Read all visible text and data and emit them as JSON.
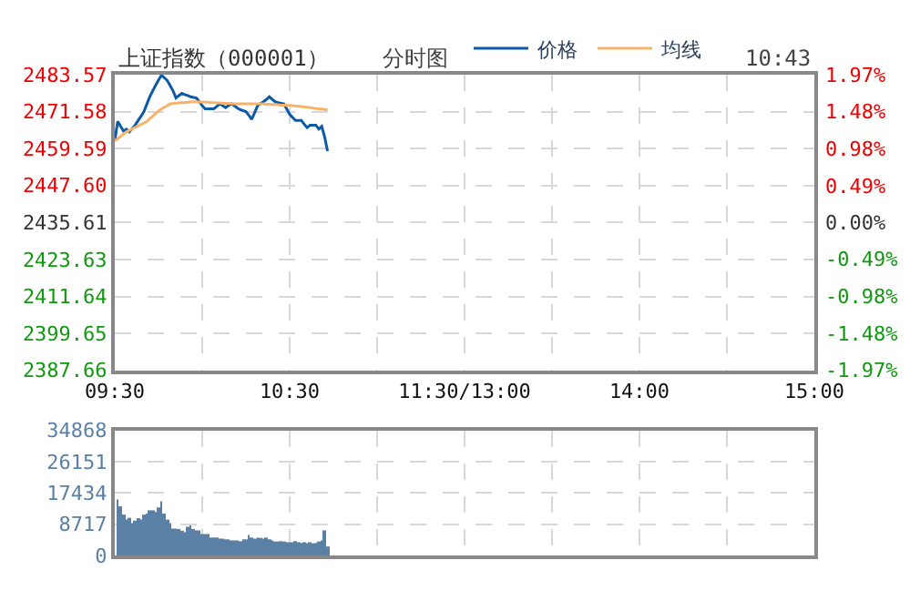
{
  "chart_data": [
    {
      "type": "line",
      "title": "上证指数（000001）",
      "annotations": [
        "分时图",
        "10:43"
      ],
      "legend": "top",
      "grid": true,
      "marker": "none",
      "line_style": "solid",
      "categories": [
        "09:30",
        null,
        null,
        null,
        null,
        null,
        null,
        null,
        null,
        null,
        null,
        null,
        null,
        null,
        null,
        null,
        null,
        null,
        null,
        null,
        null,
        null,
        null,
        null,
        null,
        null,
        null,
        null,
        null,
        null,
        null,
        null,
        null,
        null,
        null,
        null,
        null,
        null,
        null,
        null,
        null,
        null,
        null,
        null,
        null,
        null,
        null,
        null,
        null,
        null,
        null,
        null,
        null,
        null,
        null,
        null,
        null,
        null,
        null,
        null,
        "10:30",
        null,
        null,
        null,
        null,
        null,
        null,
        null,
        null,
        null,
        null,
        null,
        null,
        null,
        null,
        null,
        null,
        null,
        null,
        null,
        null,
        null,
        null,
        null,
        null,
        null,
        null,
        null,
        null,
        null,
        null,
        null,
        null,
        null,
        null,
        null,
        null,
        null,
        null,
        null,
        null,
        null,
        null,
        null,
        null,
        null,
        null,
        null,
        null,
        null,
        null,
        null,
        null,
        null,
        null,
        null,
        null,
        null,
        null,
        null,
        "11:30/13:00",
        null,
        null,
        null,
        null,
        null,
        null,
        null,
        null,
        null,
        null,
        null,
        null,
        null,
        null,
        null,
        null,
        null,
        null,
        null,
        null,
        null,
        null,
        null,
        null,
        null,
        null,
        null,
        null,
        null,
        null,
        null,
        null,
        null,
        null,
        null,
        null,
        null,
        null,
        null,
        null,
        null,
        null,
        null,
        null,
        null,
        null,
        null,
        null,
        null,
        null,
        null,
        null,
        null,
        null,
        null,
        null,
        null,
        null,
        null,
        "14:00",
        null,
        null,
        null,
        null,
        null,
        null,
        null,
        null,
        null,
        null,
        null,
        null,
        null,
        null,
        null,
        null,
        null,
        null,
        null,
        null,
        null,
        null,
        null,
        null,
        null,
        null,
        null,
        null,
        null,
        null,
        null,
        null,
        null,
        null,
        null,
        null,
        null,
        null,
        null,
        null,
        null,
        null,
        null,
        null,
        null,
        null,
        null,
        null,
        null,
        null,
        null,
        null,
        null,
        null,
        null,
        null,
        null,
        null,
        null,
        "15:00"
      ],
      "ylim": [
        2387.66,
        2483.57
      ],
      "yticks": [
        2483.57,
        2471.58,
        2459.59,
        {
          "value": 2447.6,
          "label": "2447.60"
        },
        2435.61,
        2423.63,
        2411.64,
        2399.65,
        2387.66
      ],
      "y2lim": [
        -1.97,
        1.97
      ],
      "y2ticks": [
        {
          "value": 1.97,
          "label": "1.97%"
        },
        {
          "value": 1.48,
          "label": "1.48%"
        },
        {
          "value": 0.98,
          "label": "0.98%"
        },
        {
          "value": 0.49,
          "label": "0.49%"
        },
        {
          "value": 0,
          "label": "0.00%"
        },
        {
          "value": -0.49,
          "label": "-0.49%"
        },
        {
          "value": -0.98,
          "label": "-0.98%"
        },
        {
          "value": -1.48,
          "label": "-1.48%"
        },
        {
          "value": -1.97,
          "label": "-1.97%"
        }
      ],
      "series": [
        {
          "name": "价格",
          "color": "#0a5aa8",
          "values": [
            2462.1,
            2468.4,
            2466.8,
            2465.3,
            2465.9,
            2465.0,
            2466.1,
            2467.2,
            2468.7,
            2470.1,
            2471.6,
            2474.0,
            2476.4,
            2478.3,
            2480.1,
            2481.8,
            2483.4,
            2482.6,
            2481.7,
            2480.0,
            2478.3,
            2476.0,
            2476.8,
            2477.5,
            2477.1,
            2476.8,
            2476.4,
            2476.2,
            2476.0,
            2474.8,
            2473.5,
            2472.5,
            2472.5,
            2472.5,
            2472.5,
            2473.3,
            2474.1,
            2473.5,
            2472.9,
            2473.5,
            2474.1,
            2473.5,
            2472.8,
            2472.2,
            2471.9,
            2471.6,
            2470.4,
            2469.1,
            2471.3,
            2473.5,
            2474.2,
            2474.8,
            2475.5,
            2476.4,
            2475.6,
            2474.8,
            2474.5,
            2474.3,
            2474.1,
            2472.4,
            2470.7,
            2469.7,
            2468.7,
            2468.7,
            2468.7,
            2467.5,
            2466.4,
            2467.2,
            2467.2,
            2467.2,
            2465.9,
            2466.8,
            2463.4,
            2458.8,
            null,
            null,
            null,
            null,
            null,
            null,
            null,
            null,
            null,
            null,
            null,
            null,
            null,
            null,
            null,
            null,
            null,
            null,
            null,
            null,
            null,
            null,
            null,
            null,
            null,
            null,
            null,
            null,
            null,
            null,
            null,
            null,
            null,
            null,
            null,
            null,
            null,
            null,
            null,
            null,
            null,
            null,
            null,
            null,
            null,
            null,
            null,
            null,
            null,
            null,
            null,
            null,
            null,
            null,
            null,
            null,
            null,
            null,
            null,
            null,
            null,
            null,
            null,
            null,
            null,
            null,
            null,
            null,
            null,
            null,
            null,
            null,
            null,
            null,
            null,
            null,
            null,
            null,
            null,
            null,
            null,
            null,
            null,
            null,
            null,
            null,
            null,
            null,
            null,
            null,
            null,
            null,
            null,
            null,
            null,
            null,
            null,
            null,
            null,
            null,
            null,
            null,
            null,
            null,
            null,
            null,
            null,
            null,
            null,
            null,
            null,
            null,
            null,
            null,
            null,
            null,
            null,
            null,
            null,
            null,
            null,
            null,
            null,
            null,
            null,
            null,
            null,
            null,
            null,
            null,
            null,
            null,
            null,
            null,
            null,
            null,
            null,
            null,
            null,
            null,
            null,
            null,
            null,
            null,
            null,
            null,
            null,
            null,
            null,
            null,
            null,
            null,
            null,
            null,
            null,
            null,
            null,
            null,
            null,
            null,
            null,
            null,
            null,
            null,
            null,
            null,
            null
          ]
        },
        {
          "name": "均线",
          "color": "#f5b36b",
          "values": [
            2462.1,
            2462.8,
            2463.6,
            2464.3,
            2465.0,
            2465.5,
            2466.0,
            2466.5,
            2466.9,
            2467.4,
            2467.9,
            2468.4,
            2469.3,
            2470.1,
            2471.0,
            2471.8,
            2472.4,
            2473.0,
            2473.5,
            2474.1,
            2474.2,
            2474.3,
            2474.4,
            2474.5,
            2474.5,
            2474.6,
            2474.7,
            2474.8,
            2474.8,
            2474.7,
            2474.7,
            2474.6,
            2474.6,
            2474.5,
            2474.5,
            2474.4,
            2474.4,
            2474.3,
            2474.3,
            2474.2,
            2474.2,
            2474.1,
            2474.1,
            2474.1,
            2474.1,
            2474.1,
            2474.1,
            2474.1,
            2474.1,
            2474.1,
            2474.1,
            2474.1,
            2474.0,
            2474.0,
            2473.9,
            2473.9,
            2473.8,
            2473.7,
            2473.7,
            2473.6,
            2473.6,
            2473.5,
            2473.4,
            2473.3,
            2473.2,
            2473.1,
            2473.0,
            2472.9,
            2472.7,
            2472.6,
            2472.5,
            2472.4,
            2472.3,
            2472.2,
            null,
            null,
            null,
            null,
            null,
            null,
            null,
            null,
            null,
            null,
            null,
            null,
            null,
            null,
            null,
            null,
            null,
            null,
            null,
            null,
            null,
            null,
            null,
            null,
            null,
            null,
            null,
            null,
            null,
            null,
            null,
            null,
            null,
            null,
            null,
            null,
            null,
            null,
            null,
            null,
            null,
            null,
            null,
            null,
            null,
            null,
            null,
            null,
            null,
            null,
            null,
            null,
            null,
            null,
            null,
            null,
            null,
            null,
            null,
            null,
            null,
            null,
            null,
            null,
            null,
            null,
            null,
            null,
            null,
            null,
            null,
            null,
            null,
            null,
            null,
            null,
            null,
            null,
            null,
            null,
            null,
            null,
            null,
            null,
            null,
            null,
            null,
            null,
            null,
            null,
            null,
            null,
            null,
            null,
            null,
            null,
            null,
            null,
            null,
            null,
            null,
            null,
            null,
            null,
            null,
            null,
            null,
            null,
            null,
            null,
            null,
            null,
            null,
            null,
            null,
            null,
            null,
            null,
            null,
            null,
            null,
            null,
            null,
            null,
            null,
            null,
            null,
            null,
            null,
            null,
            null,
            null,
            null,
            null,
            null,
            null,
            null,
            null,
            null,
            null,
            null,
            null,
            null,
            null,
            null,
            null,
            null,
            null,
            null,
            null,
            null,
            null,
            null,
            null,
            null,
            null,
            null,
            null,
            null,
            null,
            null,
            null,
            null,
            null,
            null,
            null,
            null
          ]
        }
      ]
    },
    {
      "type": "bar",
      "grid": true,
      "categories": [
        null,
        null,
        null,
        null,
        null,
        null,
        null,
        null,
        null,
        null,
        null,
        null,
        null,
        null,
        null,
        null,
        null,
        null,
        null,
        null,
        null,
        null,
        null,
        null,
        null,
        null,
        null,
        null,
        null,
        null,
        null,
        null,
        null,
        null,
        null,
        null,
        null,
        null,
        null,
        null,
        null,
        null,
        null,
        null,
        null,
        null,
        null,
        null,
        null,
        null,
        null,
        null,
        null,
        null,
        null,
        null,
        null,
        null,
        null,
        null,
        null,
        null,
        null,
        null,
        null,
        null,
        null,
        null,
        null,
        null,
        null,
        null,
        null,
        null,
        null,
        null,
        null,
        null,
        null,
        null,
        null,
        null,
        null,
        null,
        null,
        null,
        null,
        null,
        null,
        null,
        null,
        null,
        null,
        null,
        null,
        null,
        null,
        null,
        null,
        null,
        null,
        null,
        null,
        null,
        null,
        null,
        null,
        null,
        null,
        null,
        null,
        null,
        null,
        null,
        null,
        null,
        null,
        null,
        null,
        null,
        null,
        null,
        null,
        null,
        null,
        null,
        null,
        null,
        null,
        null,
        null,
        null,
        null,
        null,
        null,
        null,
        null,
        null,
        null,
        null,
        null,
        null,
        null,
        null,
        null,
        null,
        null,
        null,
        null,
        null,
        null,
        null,
        null,
        null,
        null,
        null,
        null,
        null,
        null,
        null,
        null,
        null,
        null,
        null,
        null,
        null,
        null,
        null,
        null,
        null,
        null,
        null,
        null,
        null,
        null,
        null,
        null,
        null,
        null,
        null,
        null,
        null,
        null,
        null,
        null,
        null,
        null,
        null,
        null,
        null,
        null,
        null,
        null,
        null,
        null,
        null,
        null,
        null,
        null,
        null,
        null,
        null,
        null,
        null,
        null,
        null,
        null,
        null,
        null,
        null,
        null,
        null,
        null,
        null,
        null,
        null,
        null,
        null,
        null,
        null,
        null,
        null,
        null,
        null,
        null,
        null,
        null,
        null,
        null,
        null,
        null,
        null,
        null,
        null,
        null,
        null,
        null,
        null,
        null,
        null,
        null
      ],
      "ylim": [
        0,
        34868
      ],
      "yticks": [
        0,
        8717,
        17434,
        26151,
        34868
      ],
      "series": [
        {
          "color": "#5b80a5",
          "values": [
            null,
            15600,
            13700,
            11400,
            10000,
            10500,
            9000,
            9700,
            10400,
            10000,
            11400,
            11700,
            12600,
            12600,
            12100,
            13400,
            15100,
            11700,
            10000,
            9000,
            7500,
            7500,
            7400,
            6900,
            6500,
            8000,
            8400,
            7400,
            7000,
            7000,
            6000,
            6000,
            6000,
            5000,
            5000,
            5000,
            4700,
            4700,
            4500,
            4500,
            4200,
            4200,
            4200,
            4000,
            4500,
            4500,
            5700,
            5000,
            4700,
            5000,
            4900,
            4700,
            5000,
            4500,
            4200,
            3900,
            3900,
            4000,
            3900,
            3700,
            3700,
            3700,
            4000,
            3700,
            3500,
            3700,
            3400,
            3700,
            3400,
            3500,
            3900,
            4200,
            7000,
            2500,
            null,
            null,
            null,
            null,
            null,
            null,
            null,
            null,
            null,
            null,
            null,
            null,
            null,
            null,
            null,
            null,
            null,
            null,
            null,
            null,
            null,
            null,
            null,
            null,
            null,
            null,
            null,
            null,
            null,
            null,
            null,
            null,
            null,
            null,
            null,
            null,
            null,
            null,
            null,
            null,
            null,
            null,
            null,
            null,
            null,
            null,
            null,
            null,
            null,
            null,
            null,
            null,
            null,
            null,
            null,
            null,
            null,
            null,
            null,
            null,
            null,
            null,
            null,
            null,
            null,
            null,
            null,
            null,
            null,
            null,
            null,
            null,
            null,
            null,
            null,
            null,
            null,
            null,
            null,
            null,
            null,
            null,
            null,
            null,
            null,
            null,
            null,
            null,
            null,
            null,
            null,
            null,
            null,
            null,
            null,
            null,
            null,
            null,
            null,
            null,
            null,
            null,
            null,
            null,
            null,
            null,
            null,
            null,
            null,
            null,
            null,
            null,
            null,
            null,
            null,
            null,
            null,
            null,
            null,
            null,
            null,
            null,
            null,
            null,
            null,
            null,
            null,
            null,
            null,
            null,
            null,
            null,
            null,
            null,
            null,
            null,
            null,
            null,
            null,
            null,
            null,
            null,
            null,
            null,
            null,
            null,
            null,
            null,
            null,
            null,
            null,
            null,
            null,
            null,
            null,
            null,
            null,
            null,
            null,
            null,
            null,
            null,
            null,
            null,
            null,
            null,
            null
          ]
        }
      ]
    }
  ]
}
